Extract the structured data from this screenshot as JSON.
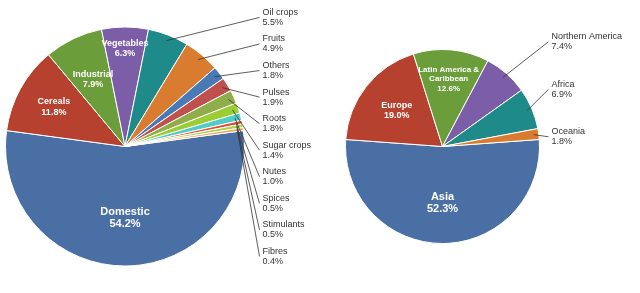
{
  "chart_data": [
    {
      "type": "pie",
      "categories": [
        "Domestic",
        "Cereals",
        "Industrial",
        "Vegetables",
        "Oil crops",
        "Fruits",
        "Others",
        "Pulses",
        "Roots",
        "Sugar crops",
        "Nutes",
        "Spices",
        "Stimulants",
        "Fibres"
      ],
      "values": [
        54.2,
        11.8,
        7.9,
        6.3,
        5.5,
        4.9,
        1.8,
        1.9,
        1.8,
        1.4,
        1.0,
        0.5,
        0.5,
        0.4
      ],
      "value_labels": [
        "54.2%",
        "11.8%",
        "7.9%",
        "6.3%",
        "5.5%",
        "4.9%",
        "1.8%",
        "1.9%",
        "1.8%",
        "1.4%",
        "1.0%",
        "0.5%",
        "0.5%",
        "0.4%"
      ],
      "colors": [
        "#4a6fa5",
        "#b5412e",
        "#6b9e3a",
        "#7b5ea7",
        "#1f8a8a",
        "#d97c30",
        "#4a7ab5",
        "#c0504d",
        "#8fae4a",
        "#9acd32",
        "#4ecdc4",
        "#e74c3c",
        "#a8d84a",
        "#f4a460"
      ],
      "data_labels": true
    },
    {
      "type": "pie",
      "categories": [
        "Asia",
        "Europe",
        "Latin America &\nCaribbean",
        "Northern America",
        "Africa",
        "Oceania"
      ],
      "values": [
        52.3,
        19.0,
        12.6,
        7.4,
        6.9,
        1.8
      ],
      "value_labels": [
        "52.3%",
        "19.0%",
        "12.6%",
        "7.4%",
        "6.9%",
        "1.8%"
      ],
      "colors": [
        "#4a6fa5",
        "#b5412e",
        "#6b9e3a",
        "#7b5ea7",
        "#1f8a8a",
        "#d97c30"
      ],
      "data_labels": true
    }
  ]
}
